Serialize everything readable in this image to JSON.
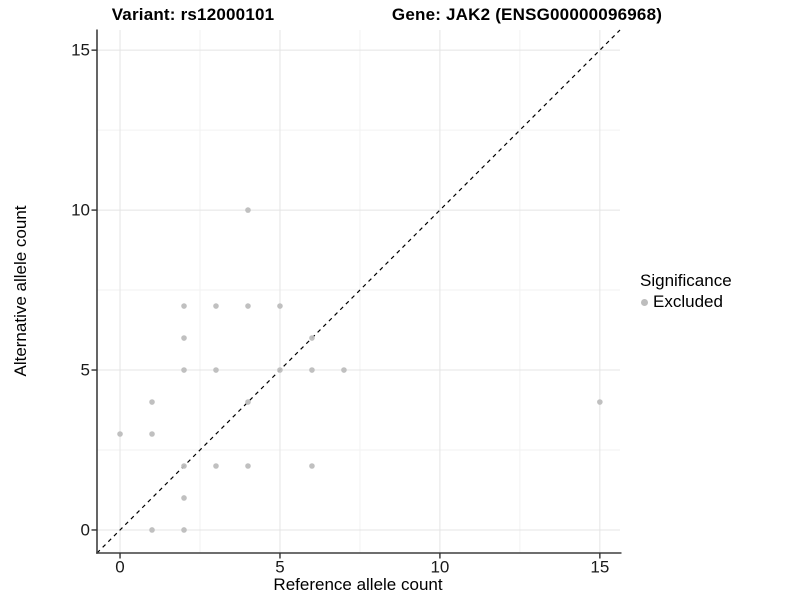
{
  "header": {
    "title_left": "Variant: rs12000101",
    "title_right": "Gene: JAK2 (ENSG00000096968)"
  },
  "chart_data": {
    "type": "scatter",
    "title": "Variant: rs12000101   Gene: JAK2 (ENSG00000096968)",
    "xlabel": "Reference allele count",
    "ylabel": "Alternative allele count",
    "xlim": [
      -0.72,
      15.63
    ],
    "ylim": [
      -0.72,
      15.63
    ],
    "xticks": [
      0,
      5,
      10,
      15
    ],
    "yticks": [
      0,
      5,
      10,
      15
    ],
    "minor_gridlines": [
      2.5,
      7.5,
      12.5
    ],
    "grid": "on",
    "identity_line": {
      "style": "dashed",
      "from": [
        -0.72,
        -0.72
      ],
      "to": [
        15.63,
        15.63
      ]
    },
    "legend": {
      "title": "Significance",
      "position": "right",
      "items": [
        {
          "label": "Excluded",
          "color": "#bdbdbd",
          "marker": "dot-icon"
        }
      ]
    },
    "series": [
      {
        "name": "Excluded",
        "color": "#bdbdbd",
        "marker_radius": 2.8,
        "points": [
          [
            0,
            3
          ],
          [
            1,
            0
          ],
          [
            1,
            3
          ],
          [
            1,
            4
          ],
          [
            2,
            0
          ],
          [
            2,
            1
          ],
          [
            2,
            2
          ],
          [
            2,
            5
          ],
          [
            2,
            6
          ],
          [
            2,
            7
          ],
          [
            3,
            2
          ],
          [
            3,
            5
          ],
          [
            3,
            7
          ],
          [
            4,
            2
          ],
          [
            4,
            4
          ],
          [
            4,
            7
          ],
          [
            4,
            10
          ],
          [
            5,
            5
          ],
          [
            5,
            7
          ],
          [
            6,
            2
          ],
          [
            6,
            5
          ],
          [
            6,
            6
          ],
          [
            7,
            5
          ],
          [
            15,
            4
          ]
        ]
      }
    ],
    "colors": {
      "background": "#ffffff",
      "grid_major": "#e4e4e4",
      "grid_minor": "#f2f2f2",
      "axis_line": "#3f3f3f",
      "tick_mark": "#333333",
      "point": "#bdbdbd",
      "identity_line": "#000000",
      "text": "#000000"
    }
  }
}
